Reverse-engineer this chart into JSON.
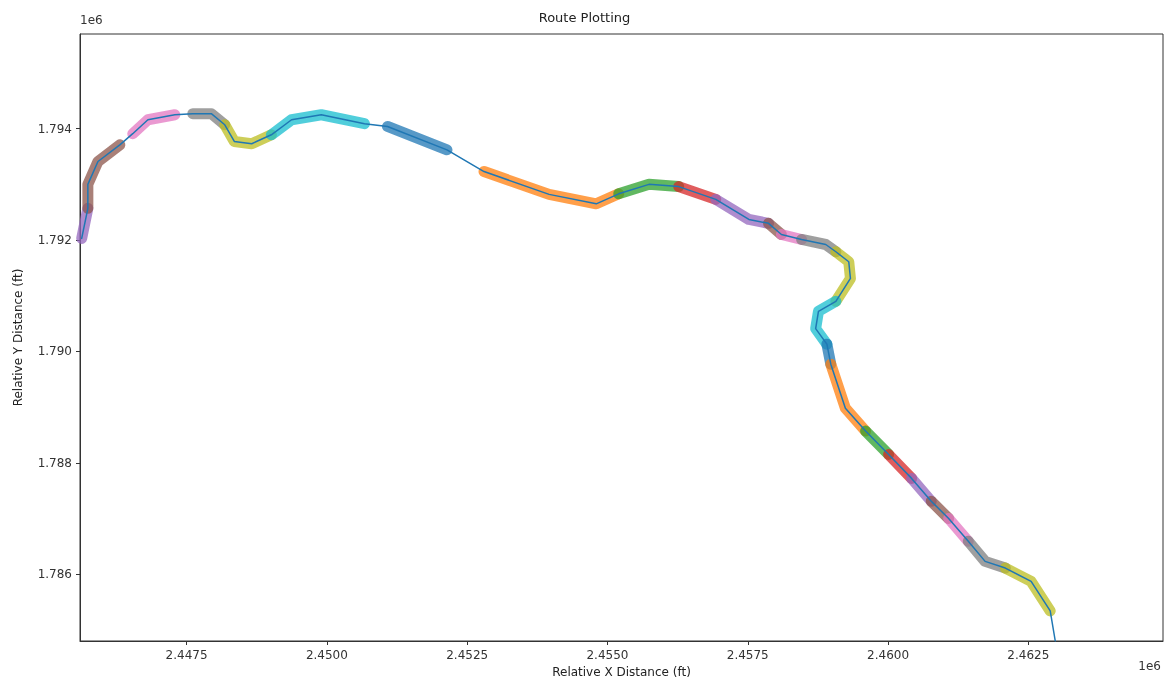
{
  "chart_data": {
    "type": "line",
    "title": "Route Plotting",
    "xlabel": "Relative X Distance (ft)",
    "ylabel": "Relative Y Distance (ft)",
    "annotations": [
      "1e6",
      "1e6"
    ],
    "xlim": [
      2.4456,
      2.4649
    ],
    "ylim": [
      1.7848,
      1.7957
    ],
    "xticks": [
      2.4475,
      {
        "value": 2.45,
        "label": "2.4500"
      },
      2.4525,
      {
        "value": 2.455,
        "label": "2.4550"
      },
      2.4575,
      {
        "value": 2.46,
        "label": "2.4600"
      },
      2.4625
    ],
    "yticks": [
      1.786,
      1.788,
      {
        "value": 1.79,
        "label": "1.790"
      },
      1.792,
      1.794
    ],
    "grid": false,
    "marker": "none",
    "line_style": "solid",
    "series": [
      {
        "color": "#1f77b4",
        "x": [
          2.44563,
          2.44574,
          2.44574,
          2.44592,
          2.44631,
          2.44654,
          2.44681,
          2.44729,
          2.44761,
          2.44794,
          2.44818,
          2.44835,
          2.44866,
          2.44901,
          2.44937,
          2.4499,
          2.45067,
          2.45108,
          2.45214,
          2.4528,
          2.45396,
          2.4548,
          2.4552,
          2.45574,
          2.45627,
          2.45693,
          2.45752,
          2.45787,
          2.4581,
          2.45846,
          2.45889,
          2.45907,
          2.4593,
          2.45933,
          2.45907,
          2.45876,
          2.45871,
          2.45891,
          2.45898,
          2.45924,
          2.4596,
          2.46001,
          2.46042,
          2.46077,
          2.46108,
          2.46143,
          2.46173,
          2.46209,
          2.46255,
          2.46289,
          2.46298
        ],
        "values": [
          1.79203,
          1.79257,
          1.793,
          1.79341,
          1.79371,
          1.79391,
          1.79416,
          1.79425,
          1.79427,
          1.79427,
          1.79407,
          1.79377,
          1.79373,
          1.79389,
          1.79416,
          1.79425,
          1.79409,
          1.79404,
          1.79362,
          1.79323,
          1.79282,
          1.79265,
          1.79283,
          1.793,
          1.79296,
          1.79273,
          1.79237,
          1.7923,
          1.7921,
          1.79201,
          1.79192,
          1.79179,
          1.79161,
          1.79131,
          1.7909,
          1.79072,
          1.79041,
          1.79013,
          1.78977,
          1.78898,
          1.78857,
          1.78815,
          1.78772,
          1.78731,
          1.787,
          1.78659,
          1.78623,
          1.78611,
          1.78587,
          1.78534,
          1.7848
        ]
      },
      {
        "color": "#9467bd",
        "x": [
          2.44563,
          2.44574
        ],
        "values": [
          1.79203,
          1.79257
        ]
      },
      {
        "color": "#8c564b",
        "x": [
          2.44574,
          2.44574,
          2.44592,
          2.44631
        ],
        "values": [
          1.79257,
          1.793,
          1.79341,
          1.79371
        ]
      },
      {
        "color": "#e377c2",
        "x": [
          2.44654,
          2.44681,
          2.44729
        ],
        "values": [
          1.79391,
          1.79416,
          1.79425
        ]
      },
      {
        "color": "#7f7f7f",
        "x": [
          2.44761,
          2.44794,
          2.44818
        ],
        "values": [
          1.79427,
          1.79427,
          1.79407
        ]
      },
      {
        "color": "#bcbd22",
        "x": [
          2.44818,
          2.44835,
          2.44866,
          2.44901
        ],
        "values": [
          1.79407,
          1.79377,
          1.79373,
          1.79389
        ]
      },
      {
        "color": "#17becf",
        "x": [
          2.44901,
          2.44937,
          2.4499,
          2.45067
        ],
        "values": [
          1.79389,
          1.79416,
          1.79425,
          1.79409
        ]
      },
      {
        "color": "#1f77b4",
        "x": [
          2.45108,
          2.45214
        ],
        "values": [
          1.79404,
          1.79362
        ]
      },
      {
        "color": "#ff7f0e",
        "x": [
          2.4528,
          2.45396,
          2.4548,
          2.4552
        ],
        "values": [
          1.79323,
          1.79282,
          1.79265,
          1.79283
        ]
      },
      {
        "color": "#2ca02c",
        "x": [
          2.4552,
          2.45574,
          2.45627
        ],
        "values": [
          1.79283,
          1.793,
          1.79296
        ]
      },
      {
        "color": "#d62728",
        "x": [
          2.45627,
          2.45693
        ],
        "values": [
          1.79296,
          1.79273
        ]
      },
      {
        "color": "#9467bd",
        "x": [
          2.45693,
          2.45752,
          2.45787
        ],
        "values": [
          1.79273,
          1.79237,
          1.7923
        ]
      },
      {
        "color": "#8c564b",
        "x": [
          2.45787,
          2.4581
        ],
        "values": [
          1.7923,
          1.7921
        ]
      },
      {
        "color": "#e377c2",
        "x": [
          2.4581,
          2.45846
        ],
        "values": [
          1.7921,
          1.79201
        ]
      },
      {
        "color": "#7f7f7f",
        "x": [
          2.45846,
          2.45889,
          2.45907
        ],
        "values": [
          1.79201,
          1.79192,
          1.79179
        ]
      },
      {
        "color": "#bcbd22",
        "x": [
          2.45907,
          2.4593,
          2.45933,
          2.45907
        ],
        "values": [
          1.79179,
          1.79161,
          1.79131,
          1.7909
        ]
      },
      {
        "color": "#17becf",
        "x": [
          2.45907,
          2.45876,
          2.45871,
          2.45891
        ],
        "values": [
          1.7909,
          1.79072,
          1.79041,
          1.79013
        ]
      },
      {
        "color": "#1f77b4",
        "x": [
          2.45891,
          2.45898
        ],
        "values": [
          1.79013,
          1.78977
        ]
      },
      {
        "color": "#ff7f0e",
        "x": [
          2.45898,
          2.45924,
          2.4596
        ],
        "values": [
          1.78977,
          1.78898,
          1.78857
        ]
      },
      {
        "color": "#2ca02c",
        "x": [
          2.4596,
          2.46001
        ],
        "values": [
          1.78857,
          1.78815
        ]
      },
      {
        "color": "#d62728",
        "x": [
          2.46001,
          2.46042
        ],
        "values": [
          1.78815,
          1.78772
        ]
      },
      {
        "color": "#9467bd",
        "x": [
          2.46042,
          2.46077
        ],
        "values": [
          1.78772,
          1.78731
        ]
      },
      {
        "color": "#8c564b",
        "x": [
          2.46077,
          2.46108
        ],
        "values": [
          1.78731,
          1.787
        ]
      },
      {
        "color": "#e377c2",
        "x": [
          2.46108,
          2.46143
        ],
        "values": [
          1.787,
          1.78659
        ]
      },
      {
        "color": "#7f7f7f",
        "x": [
          2.46143,
          2.46173,
          2.46209
        ],
        "values": [
          1.78659,
          1.78623,
          1.78611
        ]
      },
      {
        "color": "#bcbd22",
        "x": [
          2.46209,
          2.46255,
          2.46289
        ],
        "values": [
          1.78611,
          1.78587,
          1.78534
        ]
      }
    ]
  }
}
